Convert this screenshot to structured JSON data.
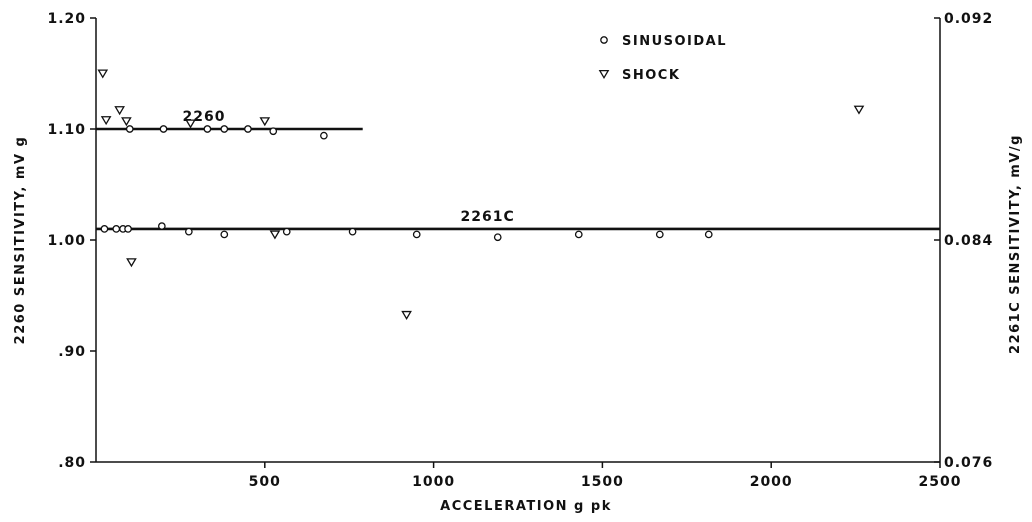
{
  "chart_data": {
    "type": "scatter",
    "title": "",
    "xlabel": "ACCELERATION g pk",
    "ylabel": "2260 SENSITIVITY, mV g",
    "y2label": "2261C SENSITIVITY, mV/g",
    "xlim": [
      0,
      2500
    ],
    "ylim": [
      0.8,
      1.2
    ],
    "y2lim": [
      0.076,
      0.092
    ],
    "x_ticks": [
      {
        "value": 500,
        "label": "500"
      },
      {
        "value": 1000,
        "label": "1000"
      },
      {
        "value": 1500,
        "label": "1500"
      },
      {
        "value": 2000,
        "label": "2000"
      },
      {
        "value": 2500,
        "label": "2500"
      }
    ],
    "y_ticks": [
      {
        "value": 1.2,
        "label": "1.20"
      },
      {
        "value": 1.1,
        "label": "1.10"
      },
      {
        "value": 1.0,
        "label": "1.00"
      },
      {
        "value": 0.9,
        "label": ".90"
      },
      {
        "value": 0.8,
        "label": ".80"
      }
    ],
    "y2_ticks": [
      {
        "value": 0.092,
        "label": "0.092"
      },
      {
        "value": 0.084,
        "label": "0.084"
      },
      {
        "value": 0.076,
        "label": "0.076"
      }
    ],
    "legend": {
      "position": "top-right",
      "entries": [
        {
          "label": "SINUSOIDAL",
          "marker": "circle"
        },
        {
          "label": "SHOCK",
          "marker": "triangle-down"
        }
      ]
    },
    "reference_lines": [
      {
        "label": "2260",
        "axis": "y",
        "value": 1.1,
        "x_start": 0,
        "x_end": 790
      },
      {
        "label": "2261C",
        "axis": "y2",
        "value": 0.0844,
        "x_start": 0,
        "x_end": 2500
      }
    ],
    "series": [
      {
        "name": "SINUSOIDAL",
        "marker": "circle",
        "points": [
          {
            "x": 100,
            "y": 1.1,
            "axis": "y"
          },
          {
            "x": 200,
            "y": 1.1,
            "axis": "y"
          },
          {
            "x": 330,
            "y": 1.1,
            "axis": "y",
            "filled": true
          },
          {
            "x": 380,
            "y": 1.1,
            "axis": "y",
            "filled": true
          },
          {
            "x": 450,
            "y": 1.1,
            "axis": "y"
          },
          {
            "x": 525,
            "y": 1.098,
            "axis": "y"
          },
          {
            "x": 675,
            "y": 1.094,
            "axis": "y"
          },
          {
            "x": 25,
            "y": 0.0844,
            "axis": "y2"
          },
          {
            "x": 60,
            "y": 0.0844,
            "axis": "y2"
          },
          {
            "x": 80,
            "y": 0.0844,
            "axis": "y2",
            "filled": true
          },
          {
            "x": 95,
            "y": 0.0844,
            "axis": "y2"
          },
          {
            "x": 195,
            "y": 0.0845,
            "axis": "y2"
          },
          {
            "x": 275,
            "y": 0.0843,
            "axis": "y2"
          },
          {
            "x": 380,
            "y": 0.0842,
            "axis": "y2"
          },
          {
            "x": 565,
            "y": 0.0843,
            "axis": "y2"
          },
          {
            "x": 760,
            "y": 0.0843,
            "axis": "y2"
          },
          {
            "x": 950,
            "y": 0.0842,
            "axis": "y2"
          },
          {
            "x": 1190,
            "y": 0.0841,
            "axis": "y2"
          },
          {
            "x": 1430,
            "y": 0.0842,
            "axis": "y2"
          },
          {
            "x": 1670,
            "y": 0.0842,
            "axis": "y2"
          },
          {
            "x": 1815,
            "y": 0.0842,
            "axis": "y2"
          }
        ]
      },
      {
        "name": "SHOCK",
        "marker": "triangle-down",
        "points": [
          {
            "x": 20,
            "y": 1.15,
            "axis": "y"
          },
          {
            "x": 30,
            "y": 1.108,
            "axis": "y"
          },
          {
            "x": 70,
            "y": 1.117,
            "axis": "y"
          },
          {
            "x": 90,
            "y": 1.107,
            "axis": "y",
            "filled": true
          },
          {
            "x": 280,
            "y": 1.105,
            "axis": "y"
          },
          {
            "x": 500,
            "y": 1.107,
            "axis": "y"
          },
          {
            "x": 105,
            "y": 0.0832,
            "axis": "y2"
          },
          {
            "x": 530,
            "y": 0.0842,
            "axis": "y2"
          },
          {
            "x": 920,
            "y": 0.0813,
            "axis": "y2"
          },
          {
            "x": 2260,
            "y": 0.0887,
            "axis": "y2"
          }
        ]
      }
    ]
  }
}
